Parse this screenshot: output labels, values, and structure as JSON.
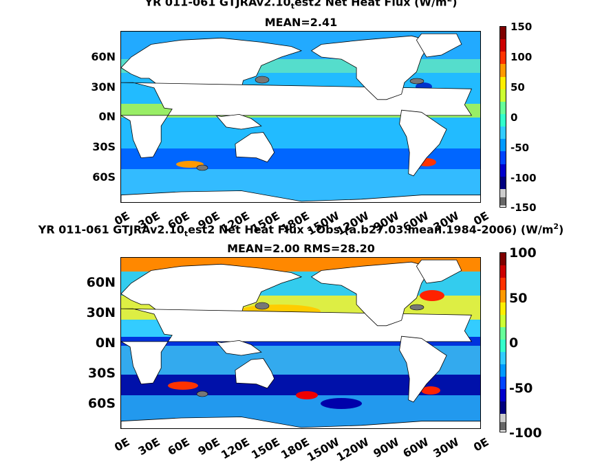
{
  "chart_data": [
    {
      "type": "heatmap",
      "title_prefix": "YR 011-061 GTJRAv2.10",
      "title_sub": "t",
      "title_suffix": "est2  Net Heat Flux (W/m",
      "title_sup": "2",
      "title_end": ")",
      "subtitle": "MEAN=2.41",
      "y_ticks": [
        "60N",
        "30N",
        "0N",
        "30S",
        "60S"
      ],
      "x_ticks": [
        "0E",
        "30E",
        "60E",
        "90E",
        "120E",
        "150E",
        "180E",
        "150W",
        "120W",
        "90W",
        "60W",
        "30W",
        "0E"
      ],
      "colorbar_ticks": [
        "150",
        "100",
        "50",
        "0",
        "-50",
        "-100",
        "-150"
      ],
      "clim": [
        -150,
        150
      ]
    },
    {
      "type": "heatmap",
      "title_prefix": "YR 011-061 GTJRAv2.10",
      "title_sub": "t",
      "title_suffix": "est2  Net Heat Flux - Obs.(a.b27.03.mean.1984-2006) (W/m",
      "title_sup": "2",
      "title_end": ")",
      "subtitle": "MEAN=2.00 RMS=28.20",
      "y_ticks": [
        "60N",
        "30N",
        "0N",
        "30S",
        "60S"
      ],
      "x_ticks": [
        "0E",
        "30E",
        "60E",
        "90E",
        "120E",
        "150E",
        "180E",
        "150W",
        "120W",
        "90W",
        "60W",
        "30W",
        "0E"
      ],
      "colorbar_ticks": [
        "100",
        "50",
        "0",
        "-50",
        "-100"
      ],
      "clim": [
        -100,
        100
      ]
    }
  ]
}
